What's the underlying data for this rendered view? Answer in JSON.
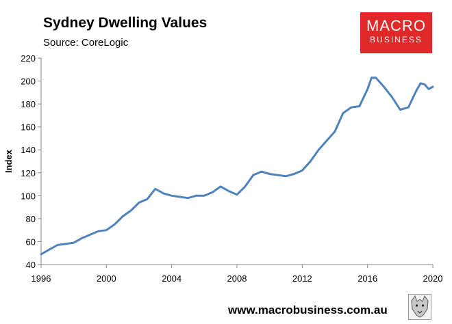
{
  "header": {
    "title": "Sydney Dwelling Values",
    "source": "Source: CoreLogic"
  },
  "logo": {
    "line1": "MACRO",
    "line2": "BUSINESS",
    "color": "#e02828"
  },
  "footer": {
    "url": "www.macrobusiness.com.au",
    "badge_icon": "wolf-mascot-icon"
  },
  "chart_data": {
    "type": "line",
    "title": "Sydney Dwelling Values",
    "subtitle": "Source: CoreLogic",
    "xlabel": "",
    "ylabel": "Index",
    "xlim": [
      1996,
      2020
    ],
    "ylim": [
      40,
      220
    ],
    "xticks": [
      1996,
      2000,
      2004,
      2008,
      2012,
      2016,
      2020
    ],
    "yticks": [
      40,
      60,
      80,
      100,
      120,
      140,
      160,
      180,
      200,
      220
    ],
    "grid": false,
    "line_color": "#4f81bd",
    "series": [
      {
        "name": "Sydney Dwelling Values",
        "x": [
          1996,
          1996.5,
          1997,
          1997.5,
          1998,
          1998.5,
          1999,
          1999.5,
          2000,
          2000.5,
          2001,
          2001.5,
          2002,
          2002.5,
          2003,
          2003.5,
          2004,
          2004.5,
          2005,
          2005.5,
          2006,
          2006.5,
          2007,
          2007.5,
          2008,
          2008.5,
          2009,
          2009.5,
          2010,
          2010.5,
          2011,
          2011.5,
          2012,
          2012.5,
          2013,
          2013.5,
          2014,
          2014.5,
          2015,
          2015.5,
          2016,
          2016.25,
          2016.5,
          2017,
          2017.5,
          2018,
          2018.5,
          2019,
          2019.25,
          2019.5,
          2019.75,
          2020
        ],
        "values": [
          49,
          53,
          57,
          58,
          59,
          63,
          66,
          69,
          70,
          75,
          82,
          87,
          94,
          97,
          106,
          102,
          100,
          99,
          98,
          100,
          100,
          103,
          108,
          104,
          101,
          108,
          118,
          121,
          119,
          118,
          117,
          119,
          122,
          130,
          140,
          148,
          156,
          172,
          177,
          178,
          193,
          203,
          203,
          195,
          186,
          175,
          177,
          192,
          198,
          197,
          193,
          195
        ]
      }
    ]
  }
}
